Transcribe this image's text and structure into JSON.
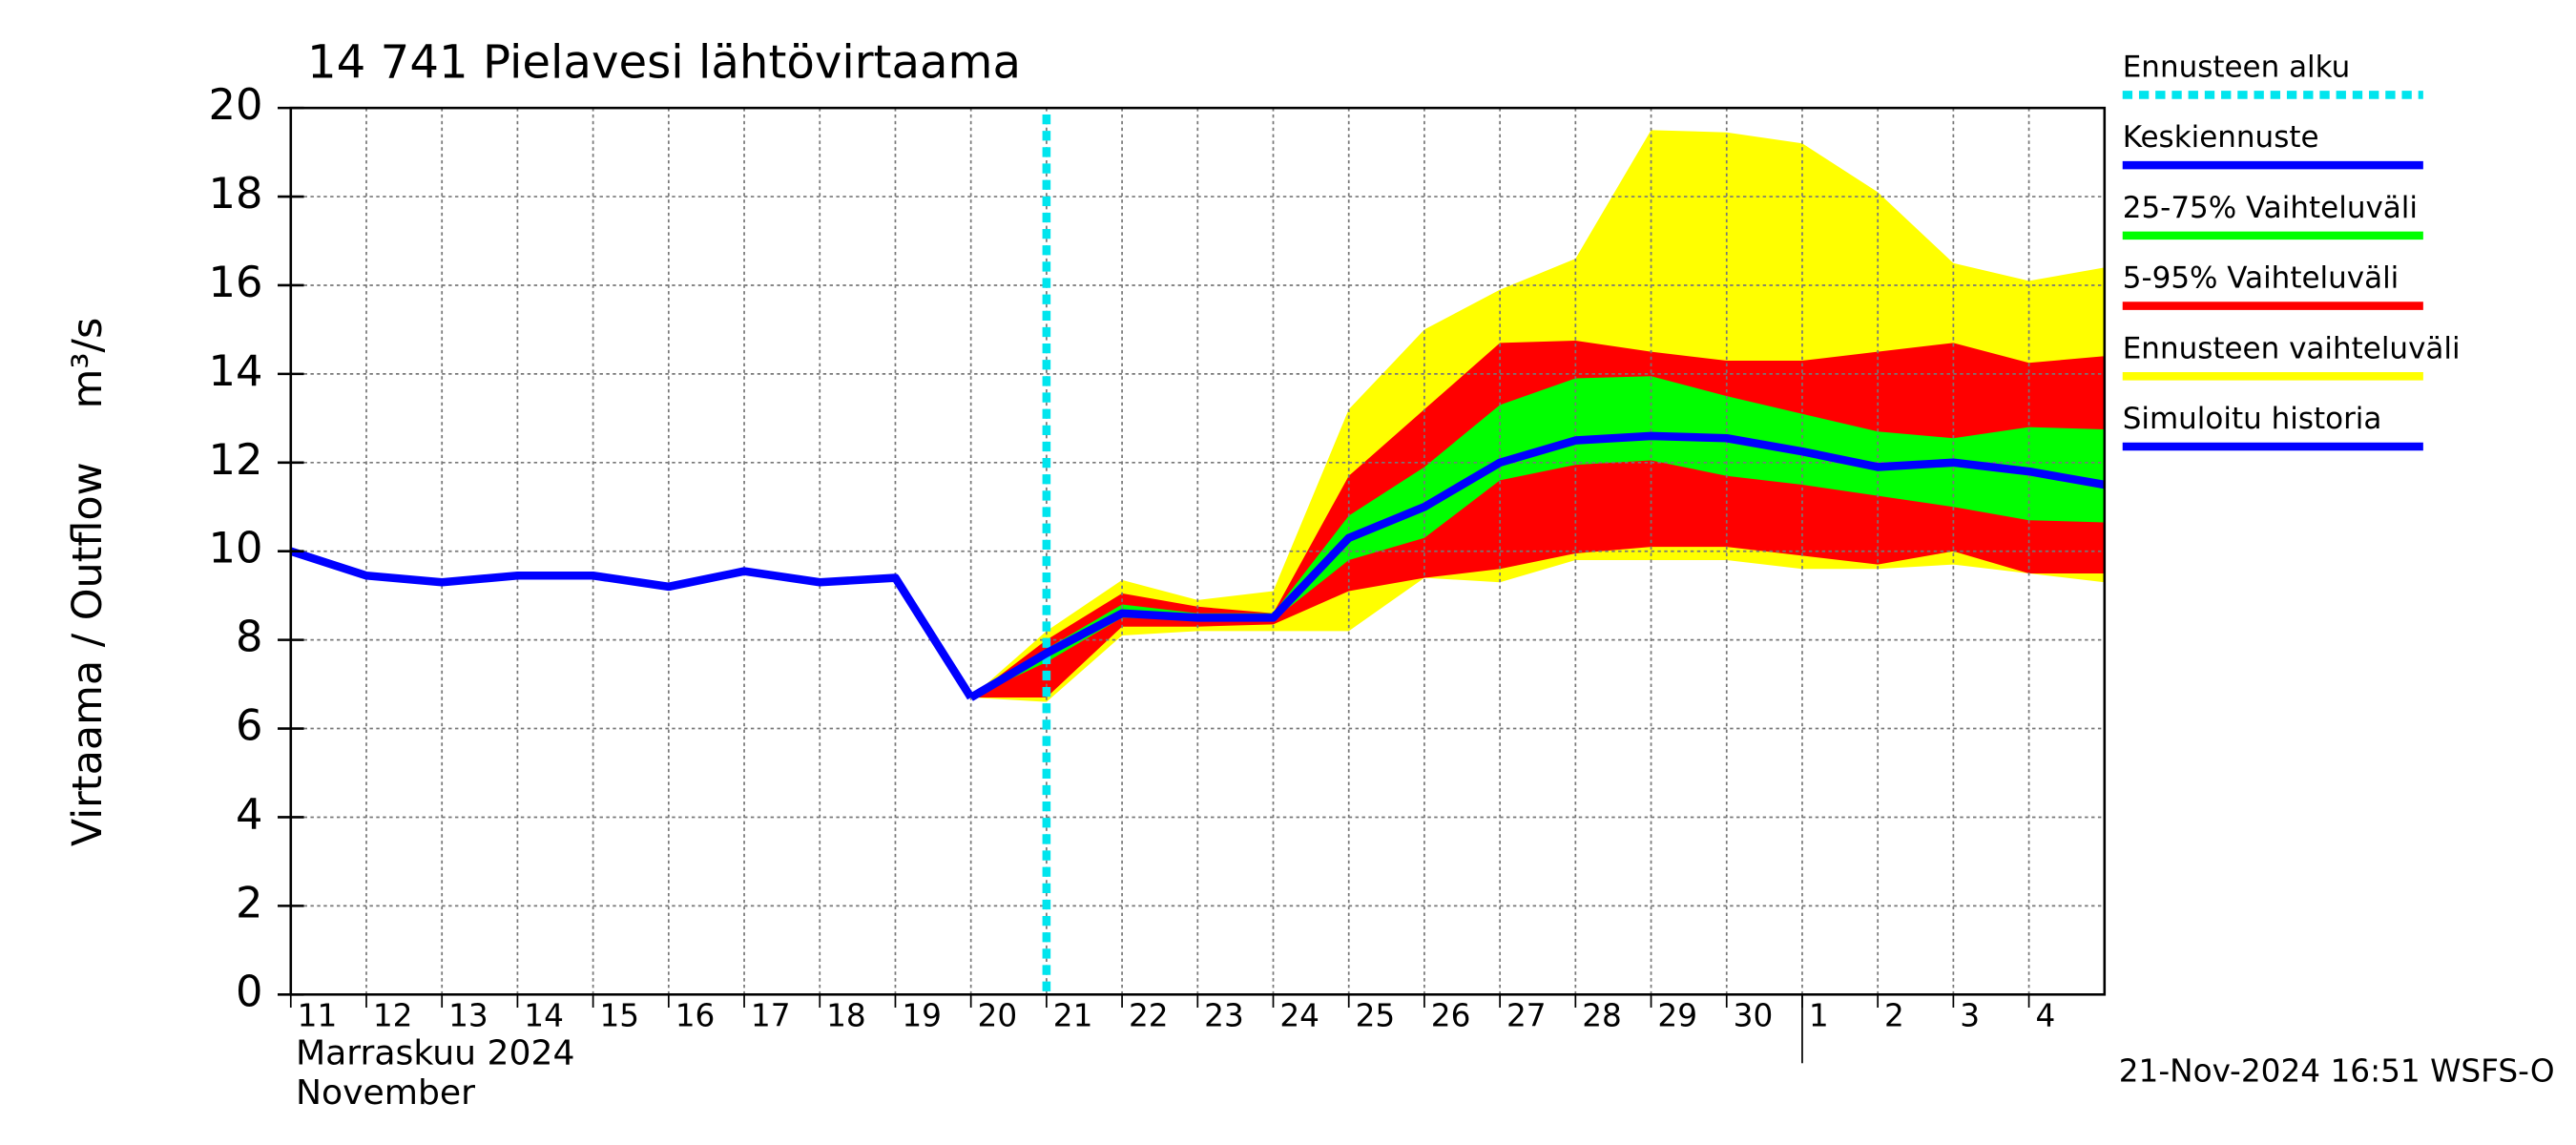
{
  "chart_data": {
    "type": "band-line",
    "title": "14 741 Pielavesi lähtövirtaama",
    "y_label": "Virtaama / Outflow",
    "y_unit": "m³/s",
    "x_label_fi": "Marraskuu 2024",
    "x_label_en": "November",
    "footer": "21-Nov-2024 16:51 WSFS-O",
    "grid": true,
    "ylim": [
      0,
      20
    ],
    "yticks": [
      0,
      2,
      4,
      6,
      8,
      10,
      12,
      14,
      16,
      18,
      20
    ],
    "xlim": [
      "2024-11-11",
      "2024-12-05"
    ],
    "xticks": [
      {
        "value": "2024-11-11",
        "label": "11"
      },
      {
        "value": "2024-11-12",
        "label": "12"
      },
      {
        "value": "2024-11-13",
        "label": "13"
      },
      {
        "value": "2024-11-14",
        "label": "14"
      },
      {
        "value": "2024-11-15",
        "label": "15"
      },
      {
        "value": "2024-11-16",
        "label": "16"
      },
      {
        "value": "2024-11-17",
        "label": "17"
      },
      {
        "value": "2024-11-18",
        "label": "18"
      },
      {
        "value": "2024-11-19",
        "label": "19"
      },
      {
        "value": "2024-11-20",
        "label": "20"
      },
      {
        "value": "2024-11-21",
        "label": "21"
      },
      {
        "value": "2024-11-22",
        "label": "22"
      },
      {
        "value": "2024-11-23",
        "label": "23"
      },
      {
        "value": "2024-11-24",
        "label": "24"
      },
      {
        "value": "2024-11-25",
        "label": "25"
      },
      {
        "value": "2024-11-26",
        "label": "26"
      },
      {
        "value": "2024-11-27",
        "label": "27"
      },
      {
        "value": "2024-11-28",
        "label": "28"
      },
      {
        "value": "2024-11-29",
        "label": "29"
      },
      {
        "value": "2024-11-30",
        "label": "30"
      },
      {
        "value": "2024-12-01",
        "label": "1"
      },
      {
        "value": "2024-12-02",
        "label": "2"
      },
      {
        "value": "2024-12-03",
        "label": "3"
      },
      {
        "value": "2024-12-04",
        "label": "4"
      }
    ],
    "month_break": "2024-12-01",
    "forecast_start": {
      "name": "Ennusteen alku",
      "color": "#00e5ee",
      "x": "2024-11-21"
    },
    "x": [
      "2024-11-11",
      "2024-11-12",
      "2024-11-13",
      "2024-11-14",
      "2024-11-15",
      "2024-11-16",
      "2024-11-17",
      "2024-11-18",
      "2024-11-19",
      "2024-11-20",
      "2024-11-21",
      "2024-11-22",
      "2024-11-23",
      "2024-11-24",
      "2024-11-25",
      "2024-11-26",
      "2024-11-27",
      "2024-11-28",
      "2024-11-29",
      "2024-11-30",
      "2024-12-01",
      "2024-12-02",
      "2024-12-03",
      "2024-12-04",
      "2024-12-05"
    ],
    "series": [
      {
        "name": "Keskiennuste",
        "kind": "line",
        "color": "#0000ff",
        "values": [
          null,
          null,
          null,
          null,
          null,
          null,
          null,
          null,
          null,
          6.7,
          7.7,
          8.6,
          8.5,
          8.5,
          10.3,
          11.0,
          12.0,
          12.5,
          12.6,
          12.55,
          12.25,
          11.9,
          12.0,
          11.8,
          11.5
        ]
      },
      {
        "name": "25-75% Vaihteluväli",
        "kind": "band",
        "color": "#00ff00",
        "upper": [
          null,
          null,
          null,
          null,
          null,
          null,
          null,
          null,
          null,
          6.7,
          7.8,
          8.8,
          8.6,
          8.6,
          10.8,
          11.9,
          13.3,
          13.9,
          13.95,
          13.5,
          13.1,
          12.7,
          12.55,
          12.8,
          12.75
        ],
        "lower": [
          null,
          null,
          null,
          null,
          null,
          null,
          null,
          null,
          null,
          6.7,
          7.5,
          8.5,
          8.45,
          8.45,
          9.8,
          10.3,
          11.6,
          11.95,
          12.05,
          11.7,
          11.5,
          11.25,
          11.0,
          10.7,
          10.65
        ]
      },
      {
        "name": "5-95% Vaihteluväli",
        "kind": "band",
        "color": "#ff0000",
        "upper": [
          null,
          null,
          null,
          null,
          null,
          null,
          null,
          null,
          null,
          6.7,
          8.0,
          9.05,
          8.75,
          8.6,
          11.7,
          13.2,
          14.7,
          14.75,
          14.5,
          14.3,
          14.3,
          14.5,
          14.7,
          14.25,
          14.4
        ],
        "lower": [
          null,
          null,
          null,
          null,
          null,
          null,
          null,
          null,
          null,
          6.7,
          6.7,
          8.3,
          8.3,
          8.35,
          9.1,
          9.4,
          9.6,
          9.95,
          10.1,
          10.1,
          9.9,
          9.7,
          10.0,
          9.5,
          9.5
        ]
      },
      {
        "name": "Ennusteen vaihteluväli",
        "kind": "band",
        "color": "#ffff00",
        "upper": [
          null,
          null,
          null,
          null,
          null,
          null,
          null,
          null,
          null,
          6.7,
          8.2,
          9.35,
          8.9,
          9.1,
          13.2,
          15.0,
          15.9,
          16.6,
          19.5,
          19.45,
          19.2,
          18.1,
          16.5,
          16.1,
          16.4
        ],
        "lower": [
          null,
          null,
          null,
          null,
          null,
          null,
          null,
          null,
          null,
          6.7,
          6.6,
          8.1,
          8.2,
          8.2,
          8.2,
          9.4,
          9.3,
          9.8,
          9.8,
          9.8,
          9.6,
          9.6,
          9.7,
          9.5,
          9.3
        ]
      },
      {
        "name": "Simuloitu historia",
        "kind": "line",
        "color": "#0000ff",
        "values": [
          10.0,
          9.45,
          9.3,
          9.45,
          9.45,
          9.2,
          9.55,
          9.3,
          9.4,
          6.7,
          null,
          null,
          null,
          null,
          null,
          null,
          null,
          null,
          null,
          null,
          null,
          null,
          null,
          null,
          null
        ]
      }
    ]
  }
}
